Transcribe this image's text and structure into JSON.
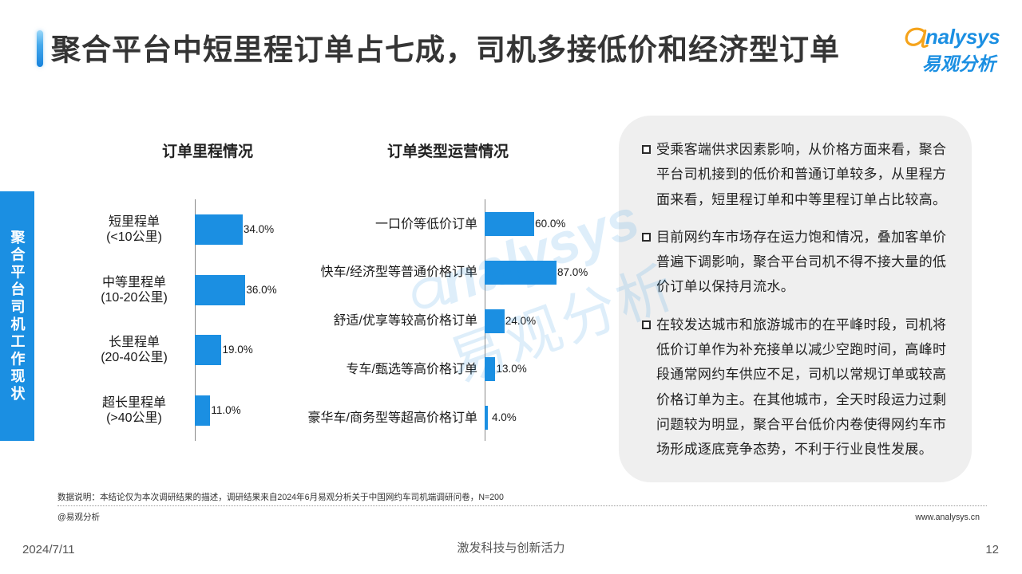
{
  "slide": {
    "title": "聚合平台中短里程订单占七成，司机多接低价和经济型订单",
    "section_label": "聚合平台司机工作现状",
    "date": "2024/7/11",
    "slogan": "激发科技与创新活力",
    "page_number": "12"
  },
  "logo": {
    "wordmark": "nalysys",
    "name_cn": "易观分析"
  },
  "watermark": {
    "wordmark": "nalysys",
    "name_cn": "易观分析"
  },
  "colors": {
    "accent": "#1b8fe2",
    "bar": "#1b8fe2",
    "logo_orange": "#f5a31b",
    "panel_background": "#efefef",
    "title_text": "#353535"
  },
  "summary_panel": {
    "bullets": [
      "受乘客端供求因素影响，从价格方面来看，聚合平台司机接到的低价和普通订单较多，从里程方面来看，短里程订单和中等里程订单占比较高。",
      "目前网约车市场存在运力饱和情况，叠加客单价普遍下调影响，聚合平台司机不得不接大量的低价订单以保持月流水。",
      "在较发达城市和旅游城市的在平峰时段，司机将低价订单作为补充接单以减少空跑时间，高峰时段通常网约车供应不足，司机以常规订单或较高价格订单为主。在其他城市，全天时段运力过剩问题较为明显，聚合平台低价内卷使得网约车市场形成逐底竞争态势，不利于行业良性发展。"
    ]
  },
  "footer": {
    "data_note": "数据说明：本结论仅为本次调研结果的描述，调研结果来自2024年6月易观分析关于中国网约车司机端调研问卷，N=200",
    "copyright": "@易观分析",
    "website": "www.analysys.cn"
  },
  "chart_data": [
    {
      "type": "bar",
      "orientation": "horizontal",
      "title": "订单里程情况",
      "categories": [
        "短里程单\n(<10公里)",
        "中等里程单\n(10-20公里)",
        "长里程单\n(20-40公里)",
        "超长里程单\n(>40公里)"
      ],
      "values": [
        34.0,
        36.0,
        19.0,
        11.0
      ],
      "unit": "%",
      "grid": false
    },
    {
      "type": "bar",
      "orientation": "horizontal",
      "title": "订单类型运营情况",
      "categories": [
        "一口价等低价订单",
        "快车/经济型等普通价格订单",
        "舒适/优享等较高价格订单",
        "专车/甄选等高价格订单",
        "豪华车/商务型等超高价格订单"
      ],
      "values": [
        60.0,
        87.0,
        24.0,
        13.0,
        4.0
      ],
      "unit": "%",
      "grid": false
    }
  ]
}
